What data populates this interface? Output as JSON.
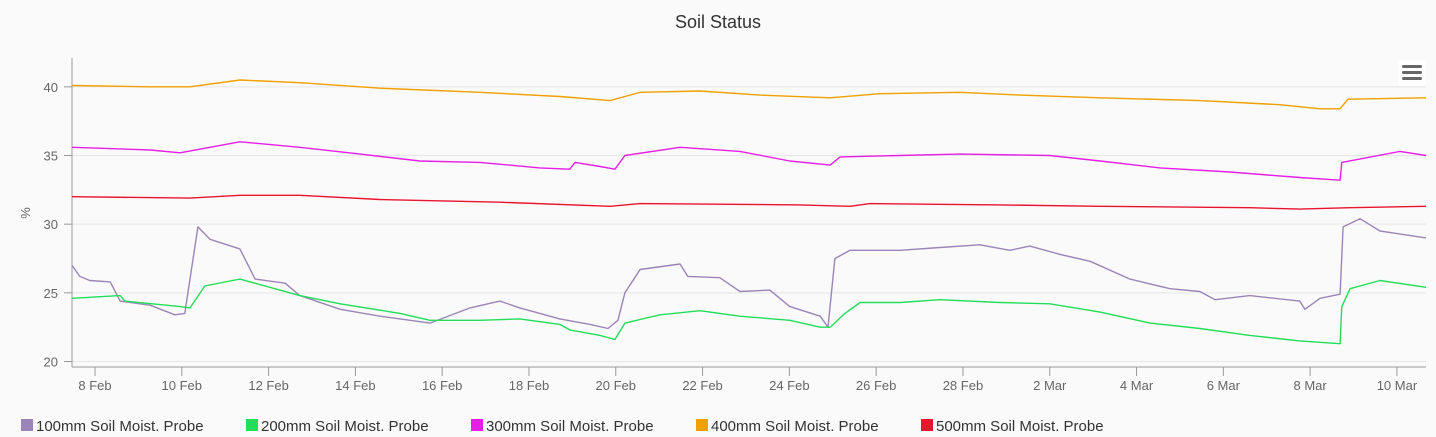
{
  "chart_data": {
    "type": "line",
    "title": "Soil Status",
    "xlabel": "",
    "ylabel": "%",
    "x_unit": "days since 8 Feb",
    "xlim": [
      -0.53,
      30.67
    ],
    "ylim": [
      19.6,
      42.1
    ],
    "yticks": [
      20,
      25,
      30,
      35,
      40
    ],
    "xticks": [
      {
        "day": 0,
        "label": "8 Feb"
      },
      {
        "day": 2,
        "label": "10 Feb"
      },
      {
        "day": 4,
        "label": "12 Feb"
      },
      {
        "day": 6,
        "label": "14 Feb"
      },
      {
        "day": 8,
        "label": "16 Feb"
      },
      {
        "day": 10,
        "label": "18 Feb"
      },
      {
        "day": 12,
        "label": "20 Feb"
      },
      {
        "day": 14,
        "label": "22 Feb"
      },
      {
        "day": 16,
        "label": "24 Feb"
      },
      {
        "day": 18,
        "label": "26 Feb"
      },
      {
        "day": 20,
        "label": "28 Feb"
      },
      {
        "day": 22,
        "label": "2 Mar"
      },
      {
        "day": 24,
        "label": "4 Mar"
      },
      {
        "day": 26,
        "label": "6 Mar"
      },
      {
        "day": 28,
        "label": "8 Mar"
      },
      {
        "day": 30,
        "label": "10 Mar"
      }
    ],
    "grid": true,
    "legend_position": "bottom-left",
    "series": [
      {
        "name": "100mm Soil Moist. Probe",
        "color": "#9b85b8",
        "points": [
          [
            -0.53,
            27.0
          ],
          [
            -0.35,
            26.2
          ],
          [
            -0.12,
            25.9
          ],
          [
            0.35,
            25.8
          ],
          [
            0.58,
            24.4
          ],
          [
            1.27,
            24.1
          ],
          [
            1.84,
            23.4
          ],
          [
            2.07,
            23.5
          ],
          [
            2.37,
            29.8
          ],
          [
            2.65,
            28.9
          ],
          [
            3.34,
            28.2
          ],
          [
            3.69,
            26.0
          ],
          [
            4.38,
            25.7
          ],
          [
            4.72,
            24.8
          ],
          [
            5.65,
            23.8
          ],
          [
            6.57,
            23.3
          ],
          [
            7.72,
            22.8
          ],
          [
            8.64,
            23.9
          ],
          [
            9.33,
            24.4
          ],
          [
            9.79,
            23.9
          ],
          [
            10.71,
            23.1
          ],
          [
            11.41,
            22.7
          ],
          [
            11.82,
            22.4
          ],
          [
            12.05,
            23.0
          ],
          [
            12.21,
            25.0
          ],
          [
            12.56,
            26.7
          ],
          [
            13.48,
            27.1
          ],
          [
            13.66,
            26.2
          ],
          [
            14.4,
            26.1
          ],
          [
            14.86,
            25.1
          ],
          [
            15.55,
            25.2
          ],
          [
            16.01,
            24.0
          ],
          [
            16.71,
            23.3
          ],
          [
            16.89,
            22.5
          ],
          [
            17.05,
            27.5
          ],
          [
            17.4,
            28.1
          ],
          [
            18.55,
            28.1
          ],
          [
            19.47,
            28.3
          ],
          [
            20.39,
            28.5
          ],
          [
            21.08,
            28.1
          ],
          [
            21.54,
            28.4
          ],
          [
            22.24,
            27.8
          ],
          [
            22.93,
            27.3
          ],
          [
            23.85,
            26.0
          ],
          [
            24.77,
            25.3
          ],
          [
            25.46,
            25.1
          ],
          [
            25.81,
            24.5
          ],
          [
            26.61,
            24.8
          ],
          [
            27.76,
            24.4
          ],
          [
            27.88,
            23.8
          ],
          [
            28.23,
            24.6
          ],
          [
            28.69,
            24.9
          ],
          [
            28.76,
            29.8
          ],
          [
            29.15,
            30.4
          ],
          [
            29.61,
            29.5
          ],
          [
            30.67,
            29.0
          ]
        ]
      },
      {
        "name": "200mm Soil Moist. Probe",
        "color": "#22dd5a",
        "points": [
          [
            -0.53,
            24.6
          ],
          [
            0.58,
            24.8
          ],
          [
            0.69,
            24.4
          ],
          [
            1.96,
            24.0
          ],
          [
            2.19,
            23.9
          ],
          [
            2.53,
            25.5
          ],
          [
            3.34,
            26.0
          ],
          [
            4.03,
            25.4
          ],
          [
            4.72,
            24.8
          ],
          [
            5.65,
            24.2
          ],
          [
            7.03,
            23.5
          ],
          [
            7.72,
            23.0
          ],
          [
            8.87,
            23.0
          ],
          [
            9.79,
            23.1
          ],
          [
            10.71,
            22.7
          ],
          [
            10.94,
            22.3
          ],
          [
            11.64,
            21.9
          ],
          [
            11.98,
            21.6
          ],
          [
            12.21,
            22.8
          ],
          [
            13.02,
            23.4
          ],
          [
            13.94,
            23.7
          ],
          [
            14.86,
            23.3
          ],
          [
            16.01,
            23.0
          ],
          [
            16.71,
            22.5
          ],
          [
            16.94,
            22.5
          ],
          [
            17.28,
            23.5
          ],
          [
            17.63,
            24.3
          ],
          [
            18.55,
            24.3
          ],
          [
            19.47,
            24.5
          ],
          [
            20.85,
            24.3
          ],
          [
            22.0,
            24.2
          ],
          [
            23.16,
            23.6
          ],
          [
            24.31,
            22.8
          ],
          [
            25.46,
            22.4
          ],
          [
            26.61,
            21.9
          ],
          [
            27.76,
            21.5
          ],
          [
            28.69,
            21.3
          ],
          [
            28.73,
            24.0
          ],
          [
            28.92,
            25.3
          ],
          [
            29.61,
            25.9
          ],
          [
            30.67,
            25.4
          ]
        ]
      },
      {
        "name": "300mm Soil Moist. Probe",
        "color": "#e61ee6",
        "points": [
          [
            -0.53,
            35.6
          ],
          [
            1.27,
            35.4
          ],
          [
            1.96,
            35.2
          ],
          [
            3.34,
            36.0
          ],
          [
            4.72,
            35.6
          ],
          [
            6.11,
            35.1
          ],
          [
            7.49,
            34.6
          ],
          [
            8.87,
            34.5
          ],
          [
            10.25,
            34.1
          ],
          [
            10.94,
            34.0
          ],
          [
            11.06,
            34.5
          ],
          [
            11.64,
            34.2
          ],
          [
            11.98,
            34.0
          ],
          [
            12.21,
            35.0
          ],
          [
            13.48,
            35.6
          ],
          [
            14.86,
            35.3
          ],
          [
            16.01,
            34.6
          ],
          [
            16.94,
            34.3
          ],
          [
            17.17,
            34.9
          ],
          [
            18.55,
            35.0
          ],
          [
            19.93,
            35.1
          ],
          [
            22.0,
            35.0
          ],
          [
            23.16,
            34.6
          ],
          [
            24.54,
            34.1
          ],
          [
            26.15,
            33.8
          ],
          [
            27.76,
            33.4
          ],
          [
            28.69,
            33.2
          ],
          [
            28.73,
            34.5
          ],
          [
            30.07,
            35.3
          ],
          [
            30.67,
            35.0
          ]
        ]
      },
      {
        "name": "400mm Soil Moist. Probe",
        "color": "#f0a000",
        "points": [
          [
            -0.53,
            40.1
          ],
          [
            1.27,
            40.0
          ],
          [
            2.19,
            40.0
          ],
          [
            3.34,
            40.5
          ],
          [
            4.72,
            40.3
          ],
          [
            6.57,
            39.9
          ],
          [
            8.87,
            39.6
          ],
          [
            10.71,
            39.3
          ],
          [
            11.87,
            39.0
          ],
          [
            12.56,
            39.6
          ],
          [
            13.94,
            39.7
          ],
          [
            15.32,
            39.4
          ],
          [
            16.94,
            39.2
          ],
          [
            18.09,
            39.5
          ],
          [
            19.93,
            39.6
          ],
          [
            21.31,
            39.4
          ],
          [
            23.16,
            39.2
          ],
          [
            25.46,
            39.0
          ],
          [
            27.3,
            38.7
          ],
          [
            28.23,
            38.4
          ],
          [
            28.69,
            38.4
          ],
          [
            28.87,
            39.1
          ],
          [
            30.67,
            39.2
          ]
        ]
      },
      {
        "name": "500mm Soil Moist. Probe",
        "color": "#e8152e",
        "points": [
          [
            -0.53,
            32.0
          ],
          [
            2.19,
            31.9
          ],
          [
            3.34,
            32.1
          ],
          [
            4.72,
            32.1
          ],
          [
            6.57,
            31.8
          ],
          [
            9.33,
            31.6
          ],
          [
            11.87,
            31.3
          ],
          [
            12.56,
            31.5
          ],
          [
            16.24,
            31.4
          ],
          [
            17.4,
            31.3
          ],
          [
            17.86,
            31.5
          ],
          [
            20.85,
            31.4
          ],
          [
            23.16,
            31.3
          ],
          [
            26.61,
            31.2
          ],
          [
            27.76,
            31.1
          ],
          [
            28.92,
            31.2
          ],
          [
            30.67,
            31.3
          ]
        ]
      }
    ]
  }
}
